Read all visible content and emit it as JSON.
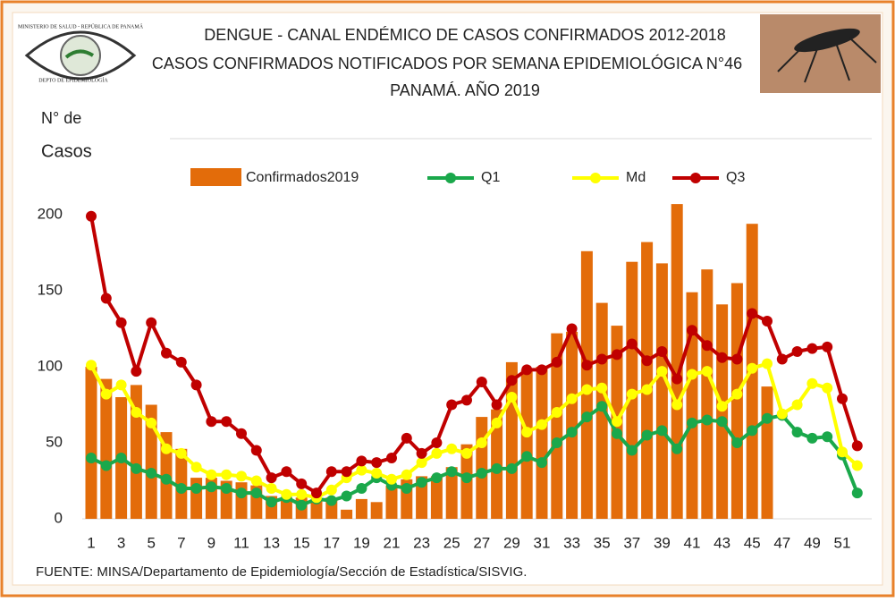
{
  "chart_data": {
    "type": "bar",
    "title": [
      "DENGUE - CANAL ENDÉMICO DE CASOS CONFIRMADOS 2012-2018",
      "CASOS CONFIRMADOS NOTIFICADOS POR SEMANA EPIDEMIOLÓGICA N°46",
      "PANAMÁ. AÑO 2019"
    ],
    "y_label": [
      "N° de",
      "Casos"
    ],
    "source": "FUENTE: MINSA/Departamento de Epidemiología/Sección de Estadística/SISVIG.",
    "logo": [
      "MINISTERIO DE SALUD - REPÚBLICA DE PANAMÁ",
      "DEPTO DE EPIDEMIOLOGÍA"
    ],
    "categories": [
      "1",
      null,
      "3",
      null,
      "5",
      null,
      "7",
      null,
      "9",
      null,
      "11",
      null,
      "13",
      null,
      "15",
      null,
      "17",
      null,
      "19",
      null,
      "21",
      null,
      "23",
      null,
      "25",
      null,
      "27",
      null,
      "29",
      null,
      "31",
      null,
      "33",
      null,
      "35",
      null,
      "37",
      null,
      "39",
      null,
      "41",
      null,
      "43",
      null,
      "45",
      null,
      "47",
      null,
      "49",
      null,
      "51",
      null
    ],
    "series": [
      {
        "name": "Confirmados2019",
        "type": "bar",
        "color": "#e36c0a",
        "values": [
          100,
          92,
          80,
          88,
          75,
          57,
          46,
          27,
          27,
          25,
          24,
          22,
          15,
          14,
          14,
          13,
          14,
          6,
          13,
          11,
          22,
          26,
          28,
          28,
          34,
          49,
          67,
          72,
          103,
          98,
          100,
          122,
          123,
          176,
          142,
          127,
          169,
          182,
          168,
          207,
          149,
          164,
          141,
          155,
          194,
          87,
          null,
          null,
          null,
          null,
          null,
          null
        ]
      },
      {
        "name": "Q1",
        "type": "line",
        "color": "#1aa84b",
        "values": [
          40,
          35,
          40,
          33,
          30,
          26,
          20,
          20,
          21,
          20,
          17,
          17,
          11,
          14,
          9,
          13,
          12,
          15,
          20,
          27,
          22,
          20,
          24,
          27,
          31,
          27,
          30,
          33,
          33,
          41,
          37,
          50,
          57,
          67,
          74,
          56,
          45,
          55,
          58,
          46,
          63,
          65,
          64,
          50,
          58,
          66,
          68,
          57,
          53,
          54,
          42,
          17
        ]
      },
      {
        "name": "Md",
        "type": "line",
        "color": "#ffff00",
        "values": [
          101,
          82,
          88,
          70,
          63,
          46,
          43,
          34,
          29,
          29,
          28,
          25,
          20,
          16,
          16,
          14,
          19,
          27,
          32,
          30,
          26,
          29,
          37,
          43,
          46,
          43,
          50,
          63,
          80,
          57,
          62,
          70,
          79,
          85,
          86,
          64,
          82,
          85,
          97,
          75,
          95,
          97,
          74,
          82,
          99,
          102,
          69,
          75,
          89,
          86,
          44,
          35
        ]
      },
      {
        "name": "Q3",
        "type": "line",
        "color": "#c00000",
        "values": [
          199,
          145,
          129,
          97,
          129,
          109,
          103,
          88,
          64,
          64,
          56,
          45,
          27,
          31,
          23,
          17,
          31,
          31,
          38,
          37,
          40,
          53,
          43,
          50,
          75,
          78,
          90,
          75,
          91,
          98,
          98,
          103,
          125,
          101,
          105,
          108,
          115,
          104,
          110,
          92,
          124,
          114,
          106,
          105,
          135,
          130,
          105,
          110,
          112,
          113,
          79,
          48
        ]
      }
    ],
    "ylim": [
      0,
      250
    ],
    "yticks": [
      0,
      50,
      100,
      150,
      200
    ],
    "grid": false
  }
}
